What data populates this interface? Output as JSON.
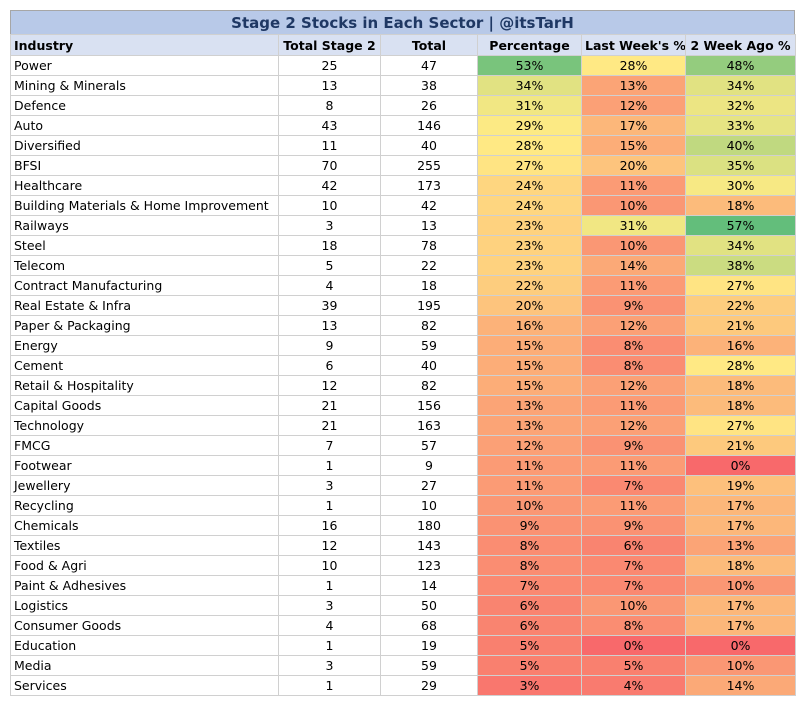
{
  "title": "Stage 2 Stocks in Each Sector | @itsTarH",
  "columns": [
    "Industry",
    "Total Stage 2",
    "Total",
    "Percentage",
    "Last Week's %",
    "2 Week Ago %"
  ],
  "rows": [
    {
      "industry": "Power",
      "stage2": "25",
      "total": "47",
      "pct": "53%",
      "last_week": "28%",
      "two_week": "48%"
    },
    {
      "industry": "Mining & Minerals",
      "stage2": "13",
      "total": "38",
      "pct": "34%",
      "last_week": "13%",
      "two_week": "34%"
    },
    {
      "industry": "Defence",
      "stage2": "8",
      "total": "26",
      "pct": "31%",
      "last_week": "12%",
      "two_week": "32%"
    },
    {
      "industry": "Auto",
      "stage2": "43",
      "total": "146",
      "pct": "29%",
      "last_week": "17%",
      "two_week": "33%"
    },
    {
      "industry": "Diversified",
      "stage2": "11",
      "total": "40",
      "pct": "28%",
      "last_week": "15%",
      "two_week": "40%"
    },
    {
      "industry": "BFSI",
      "stage2": "70",
      "total": "255",
      "pct": "27%",
      "last_week": "20%",
      "two_week": "35%"
    },
    {
      "industry": "Healthcare",
      "stage2": "42",
      "total": "173",
      "pct": "24%",
      "last_week": "11%",
      "two_week": "30%"
    },
    {
      "industry": "Building Materials & Home Improvement",
      "stage2": "10",
      "total": "42",
      "pct": "24%",
      "last_week": "10%",
      "two_week": "18%"
    },
    {
      "industry": "Railways",
      "stage2": "3",
      "total": "13",
      "pct": "23%",
      "last_week": "31%",
      "two_week": "57%"
    },
    {
      "industry": "Steel",
      "stage2": "18",
      "total": "78",
      "pct": "23%",
      "last_week": "10%",
      "two_week": "34%"
    },
    {
      "industry": "Telecom",
      "stage2": "5",
      "total": "22",
      "pct": "23%",
      "last_week": "14%",
      "two_week": "38%"
    },
    {
      "industry": "Contract Manufacturing",
      "stage2": "4",
      "total": "18",
      "pct": "22%",
      "last_week": "11%",
      "two_week": "27%"
    },
    {
      "industry": "Real Estate & Infra",
      "stage2": "39",
      "total": "195",
      "pct": "20%",
      "last_week": "9%",
      "two_week": "22%"
    },
    {
      "industry": "Paper & Packaging",
      "stage2": "13",
      "total": "82",
      "pct": "16%",
      "last_week": "12%",
      "two_week": "21%"
    },
    {
      "industry": "Energy",
      "stage2": "9",
      "total": "59",
      "pct": "15%",
      "last_week": "8%",
      "two_week": "16%"
    },
    {
      "industry": "Cement",
      "stage2": "6",
      "total": "40",
      "pct": "15%",
      "last_week": "8%",
      "two_week": "28%"
    },
    {
      "industry": "Retail & Hospitality",
      "stage2": "12",
      "total": "82",
      "pct": "15%",
      "last_week": "12%",
      "two_week": "18%"
    },
    {
      "industry": "Capital Goods",
      "stage2": "21",
      "total": "156",
      "pct": "13%",
      "last_week": "11%",
      "two_week": "18%"
    },
    {
      "industry": "Technology",
      "stage2": "21",
      "total": "163",
      "pct": "13%",
      "last_week": "12%",
      "two_week": "27%"
    },
    {
      "industry": "FMCG",
      "stage2": "7",
      "total": "57",
      "pct": "12%",
      "last_week": "9%",
      "two_week": "21%"
    },
    {
      "industry": "Footwear",
      "stage2": "1",
      "total": "9",
      "pct": "11%",
      "last_week": "11%",
      "two_week": "0%"
    },
    {
      "industry": "Jewellery",
      "stage2": "3",
      "total": "27",
      "pct": "11%",
      "last_week": "7%",
      "two_week": "19%"
    },
    {
      "industry": "Recycling",
      "stage2": "1",
      "total": "10",
      "pct": "10%",
      "last_week": "11%",
      "two_week": "17%"
    },
    {
      "industry": "Chemicals",
      "stage2": "16",
      "total": "180",
      "pct": "9%",
      "last_week": "9%",
      "two_week": "17%"
    },
    {
      "industry": "Textiles",
      "stage2": "12",
      "total": "143",
      "pct": "8%",
      "last_week": "6%",
      "two_week": "13%"
    },
    {
      "industry": "Food & Agri",
      "stage2": "10",
      "total": "123",
      "pct": "8%",
      "last_week": "7%",
      "two_week": "18%"
    },
    {
      "industry": "Paint & Adhesives",
      "stage2": "1",
      "total": "14",
      "pct": "7%",
      "last_week": "7%",
      "two_week": "10%"
    },
    {
      "industry": "Logistics",
      "stage2": "3",
      "total": "50",
      "pct": "6%",
      "last_week": "10%",
      "two_week": "17%"
    },
    {
      "industry": "Consumer Goods",
      "stage2": "4",
      "total": "68",
      "pct": "6%",
      "last_week": "8%",
      "two_week": "17%"
    },
    {
      "industry": "Education",
      "stage2": "1",
      "total": "19",
      "pct": "5%",
      "last_week": "0%",
      "two_week": "0%"
    },
    {
      "industry": "Media",
      "stage2": "3",
      "total": "59",
      "pct": "5%",
      "last_week": "5%",
      "two_week": "10%"
    },
    {
      "industry": "Services",
      "stage2": "1",
      "total": "29",
      "pct": "3%",
      "last_week": "4%",
      "two_week": "14%"
    }
  ],
  "colors": {
    "title_bg": "#b8c9e8",
    "header_bg": "#d9e1f2",
    "scale_low": "#f8696b",
    "scale_mid": "#ffeb84",
    "scale_high": "#63be7b"
  }
}
